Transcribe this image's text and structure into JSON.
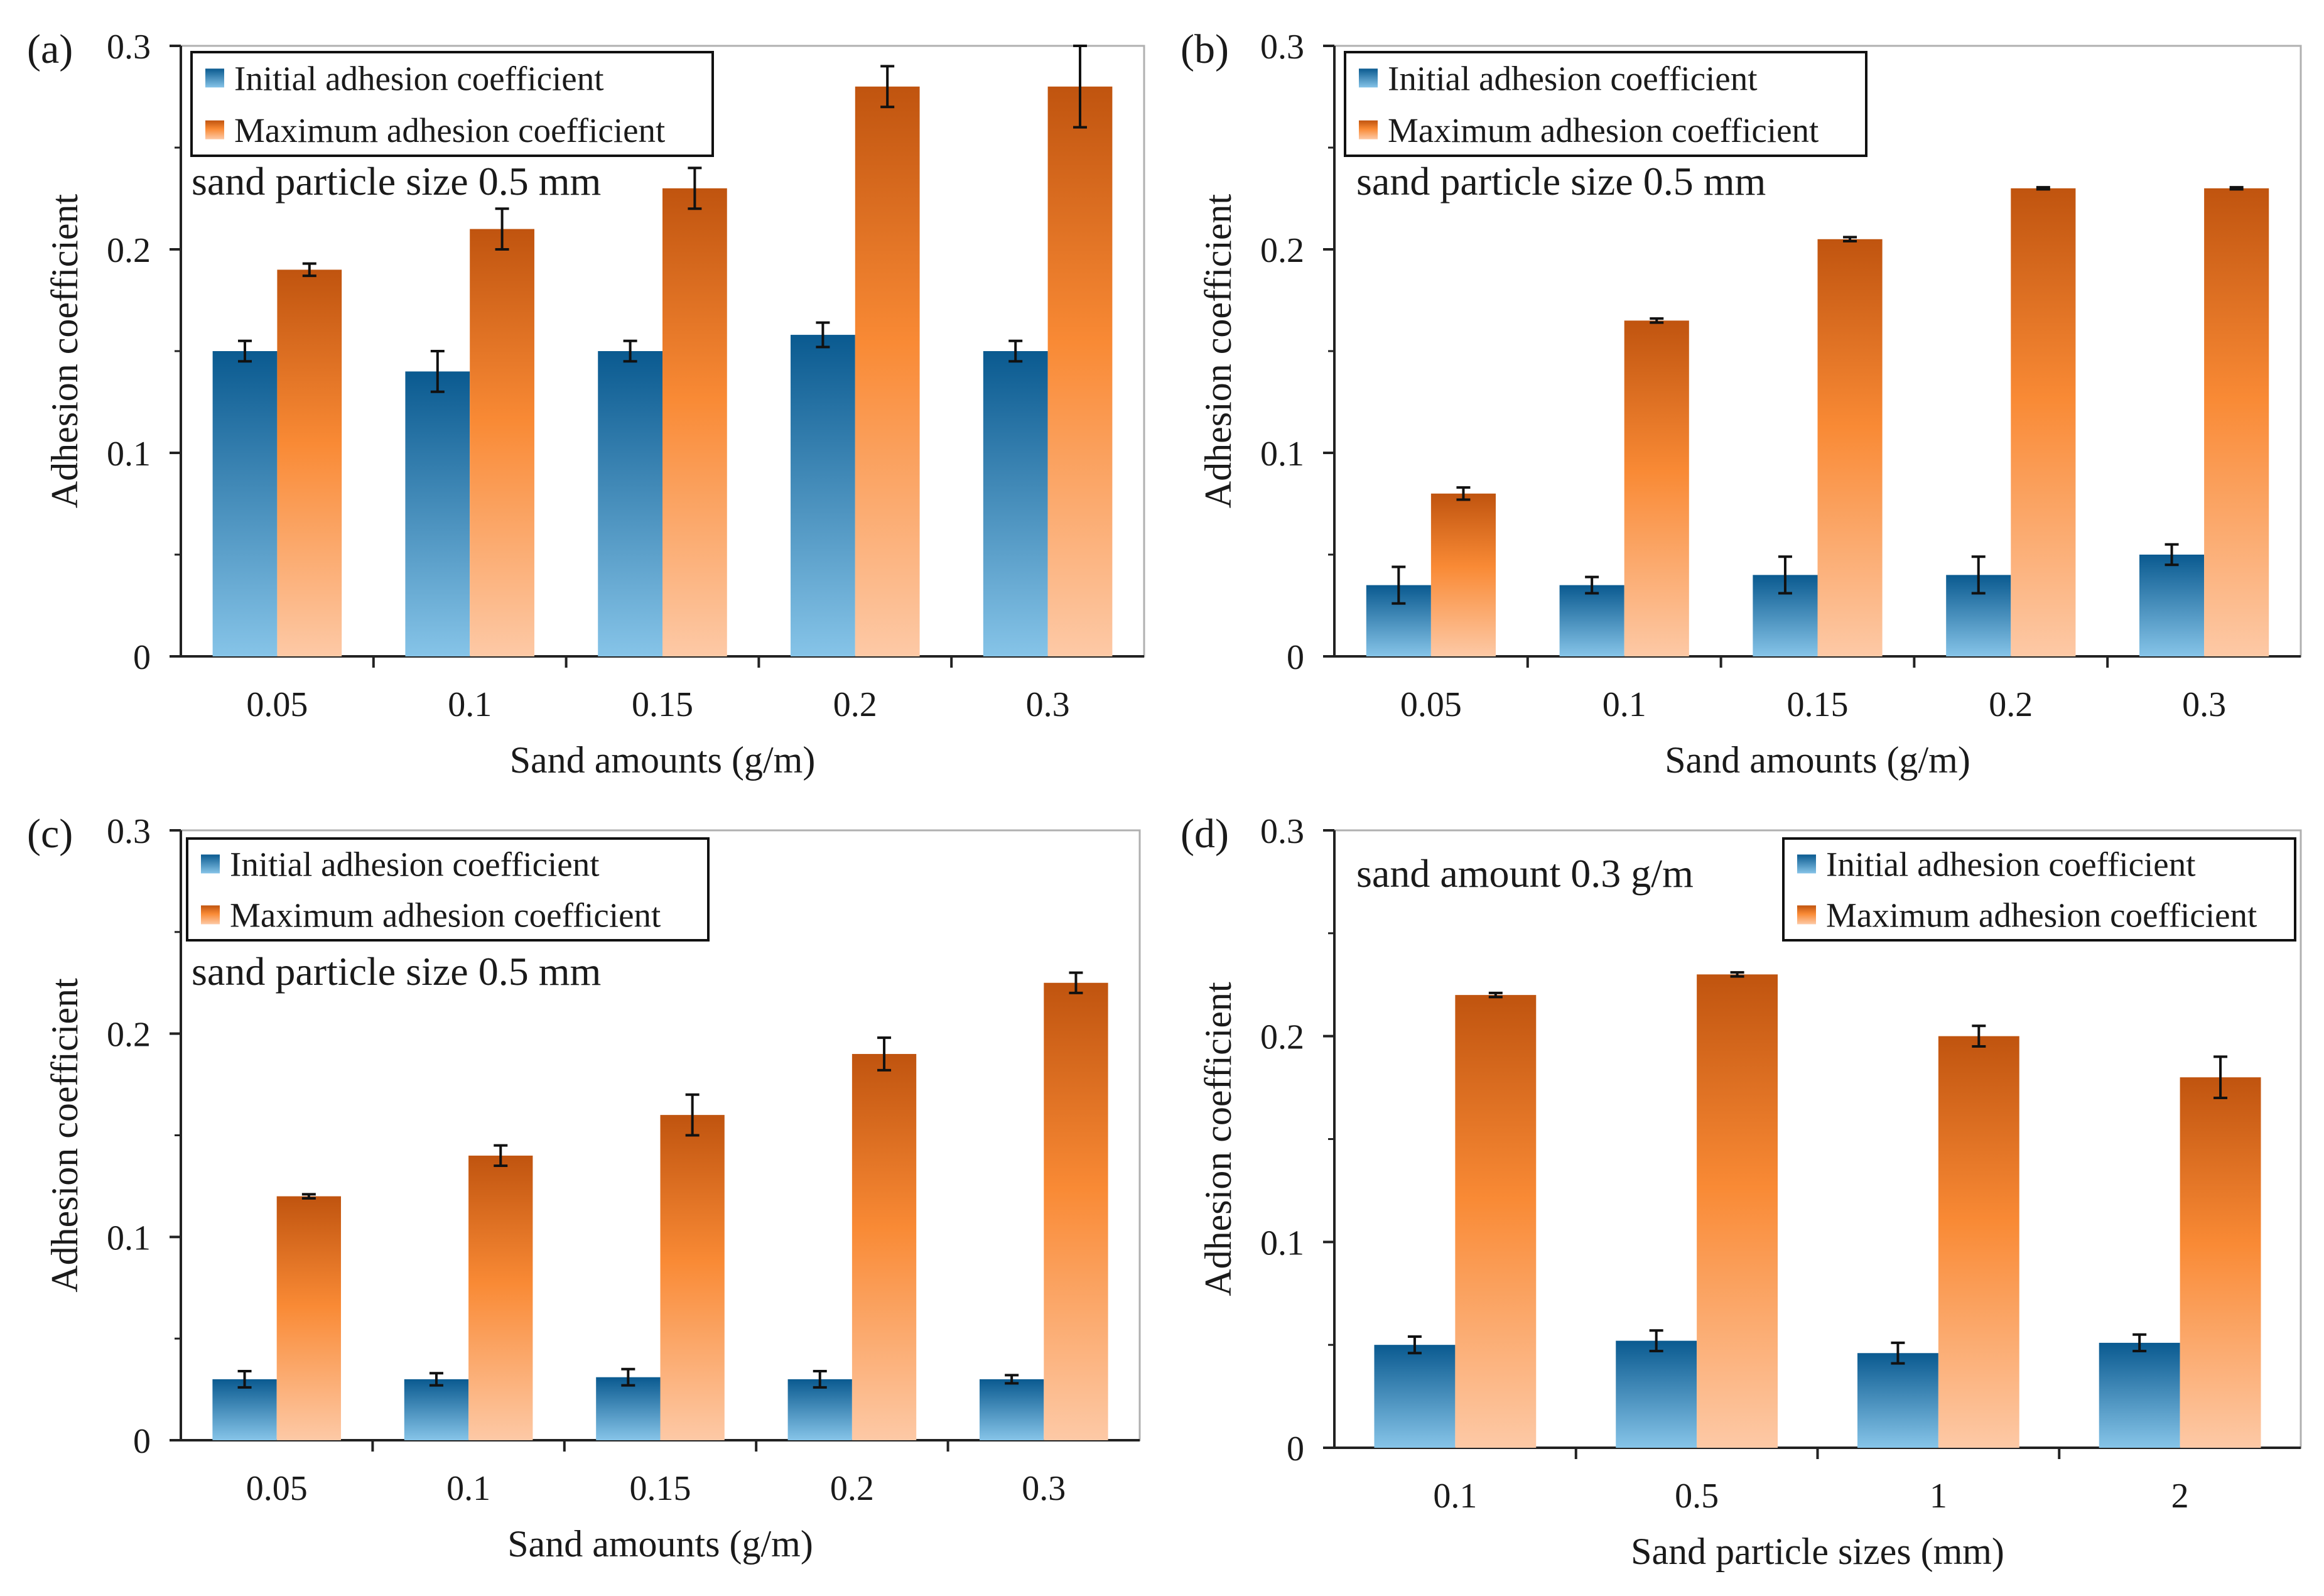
{
  "figure": {
    "legend": {
      "initial_label": "Initial adhesion coefficient",
      "maximum_label": "Maximum adhesion coefficient"
    },
    "colors": {
      "initial_top": "#0a5a90",
      "initial_bottom": "#86c4e8",
      "maximum_top": "#c0540f",
      "maximum_mid": "#f98a35",
      "maximum_bottom": "#fdc9a6",
      "axis": "#222222",
      "frame": "#b0b0b0"
    }
  },
  "chart_data": [
    {
      "type": "bar",
      "panel_label": "(a)",
      "annotation": "sand particle size 0.5 mm",
      "xlabel": "Sand amounts (g/m)",
      "ylabel": "Adhesion coefficient",
      "ylim": [
        0,
        0.3
      ],
      "yticks": [
        "0",
        "0.1",
        "0.2",
        "0.3"
      ],
      "categories": [
        "0.05",
        "0.1",
        "0.15",
        "0.2",
        "0.3"
      ],
      "series": [
        {
          "name": "Initial adhesion coefficient",
          "values": [
            0.15,
            0.14,
            0.15,
            0.158,
            0.15
          ],
          "errors": [
            0.005,
            0.01,
            0.005,
            0.006,
            0.005
          ]
        },
        {
          "name": "Maximum adhesion coefficient",
          "values": [
            0.19,
            0.21,
            0.23,
            0.28,
            0.28
          ],
          "errors": [
            0.003,
            0.01,
            0.01,
            0.01,
            0.02
          ]
        }
      ],
      "legend_position": "top-left"
    },
    {
      "type": "bar",
      "panel_label": "(b)",
      "annotation": "sand particle size 0.5 mm",
      "xlabel": "Sand amounts (g/m)",
      "ylabel": "Adhesion coefficient",
      "ylim": [
        0,
        0.3
      ],
      "yticks": [
        "0",
        "0.1",
        "0.2",
        "0.3"
      ],
      "categories": [
        "0.05",
        "0.1",
        "0.15",
        "0.2",
        "0.3"
      ],
      "series": [
        {
          "name": "Initial adhesion coefficient",
          "values": [
            0.035,
            0.035,
            0.04,
            0.04,
            0.05
          ],
          "errors": [
            0.009,
            0.004,
            0.009,
            0.009,
            0.005
          ]
        },
        {
          "name": "Maximum adhesion coefficient",
          "values": [
            0.08,
            0.165,
            0.205,
            0.23,
            0.23
          ],
          "errors": [
            0.003,
            0.001,
            0.001,
            0.0005,
            0.0005
          ]
        }
      ],
      "legend_position": "top-left"
    },
    {
      "type": "bar",
      "panel_label": "(c)",
      "annotation": "sand particle size 0.5 mm",
      "xlabel": "Sand amounts (g/m)",
      "ylabel": "Adhesion coefficient",
      "ylim": [
        0,
        0.3
      ],
      "yticks": [
        "0",
        "0.1",
        "0.2",
        "0.3"
      ],
      "categories": [
        "0.05",
        "0.1",
        "0.15",
        "0.2",
        "0.3"
      ],
      "series": [
        {
          "name": "Initial adhesion coefficient",
          "values": [
            0.03,
            0.03,
            0.031,
            0.03,
            0.03
          ],
          "errors": [
            0.004,
            0.003,
            0.004,
            0.004,
            0.002
          ]
        },
        {
          "name": "Maximum adhesion coefficient",
          "values": [
            0.12,
            0.14,
            0.16,
            0.19,
            0.225
          ],
          "errors": [
            0.001,
            0.005,
            0.01,
            0.008,
            0.005
          ]
        }
      ],
      "legend_position": "top-left"
    },
    {
      "type": "bar",
      "panel_label": "(d)",
      "annotation": "sand amount 0.3 g/m",
      "xlabel": "Sand particle sizes (mm)",
      "ylabel": "Adhesion coefficient",
      "ylim": [
        0,
        0.3
      ],
      "yticks": [
        "0",
        "0.1",
        "0.2",
        "0.3"
      ],
      "categories": [
        "0.1",
        "0.5",
        "1",
        "2"
      ],
      "series": [
        {
          "name": "Initial adhesion coefficient",
          "values": [
            0.05,
            0.052,
            0.046,
            0.051
          ],
          "errors": [
            0.004,
            0.005,
            0.005,
            0.004
          ]
        },
        {
          "name": "Maximum adhesion coefficient",
          "values": [
            0.22,
            0.23,
            0.2,
            0.18
          ],
          "errors": [
            0.001,
            0.001,
            0.005,
            0.01
          ]
        }
      ],
      "legend_position": "top-right"
    }
  ]
}
